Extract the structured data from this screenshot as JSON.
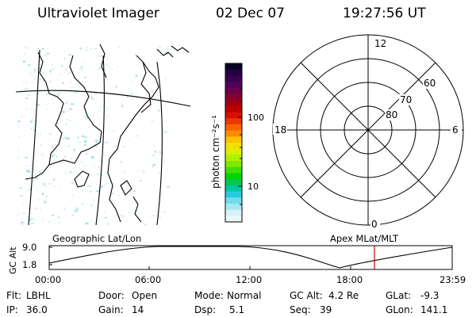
{
  "header": {
    "title": "Ultraviolet Imager",
    "date": "02 Dec 07",
    "time": "19:27:56 UT"
  },
  "colorbar": {
    "unit_label": "photon cm⁻²s⁻¹",
    "ticks": [
      "100",
      "10"
    ],
    "colors": [
      "#0a0028",
      "#240040",
      "#3a0050",
      "#50005a",
      "#6a004a",
      "#85002c",
      "#a00014",
      "#bc0000",
      "#d81000",
      "#ee3600",
      "#f86400",
      "#fc8c00",
      "#fac200",
      "#f2e000",
      "#d8f000",
      "#b0f000",
      "#80e800",
      "#40de00",
      "#00d400",
      "#00c850",
      "#00c8a0",
      "#28cce0",
      "#70dcec",
      "#a6e8f0",
      "#d8f2f6",
      "#ecf6f8"
    ]
  },
  "polar_plot": {
    "mlt_labels": {
      "top": "12",
      "right": "6",
      "bottom": "0",
      "left": "18"
    },
    "lat_labels": [
      "80",
      "70",
      "60"
    ]
  },
  "timeline": {
    "axis_label": "GC Alt",
    "y_ticks": [
      "9.0",
      "1.8"
    ],
    "left_caption": "Geographic Lat/Lon",
    "right_caption": "Apex MLat/MLT",
    "x_ticks": [
      "00:00",
      "06:00",
      "12:00",
      "18:00",
      "23:59"
    ],
    "marker_color": "#cc0000"
  },
  "footer": {
    "row1": [
      {
        "label": "Flt:",
        "value": "LBHL"
      },
      {
        "label": "Door:",
        "value": "Open"
      },
      {
        "label": "Mode:",
        "value": "Normal"
      },
      {
        "label": "GC Alt:",
        "value": "4.2 Re"
      },
      {
        "label": "GLat:",
        "value": "-9.3"
      }
    ],
    "row2": [
      {
        "label": "IP:",
        "value": "36.0"
      },
      {
        "label": "Gain:",
        "value": "14"
      },
      {
        "label": "Dsp:",
        "value": "5.1"
      },
      {
        "label": "Seq:",
        "value": "39"
      },
      {
        "label": "GLon:",
        "value": "141.1"
      }
    ]
  }
}
